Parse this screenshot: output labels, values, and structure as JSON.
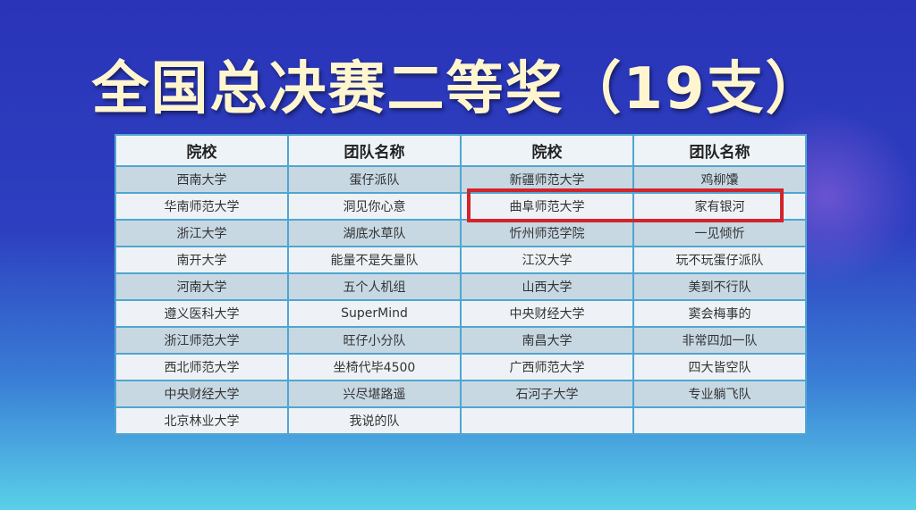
{
  "title": "全国总决赛二等奖（19支）",
  "headers": [
    "院校",
    "团队名称",
    "院校",
    "团队名称"
  ],
  "rows": [
    [
      "西南大学",
      "蛋仔派队",
      "新疆师范大学",
      "鸡柳馕"
    ],
    [
      "华南师范大学",
      "洞见你心意",
      "曲阜师范大学",
      "家有银河"
    ],
    [
      "浙江大学",
      "湖底水草队",
      "忻州师范学院",
      "一见倾忻"
    ],
    [
      "南开大学",
      "能量不是矢量队",
      "江汉大学",
      "玩不玩蛋仔派队"
    ],
    [
      "河南大学",
      "五个人机组",
      "山西大学",
      "美到不行队"
    ],
    [
      "遵义医科大学",
      "SuperMind",
      "中央财经大学",
      "窦会梅事的"
    ],
    [
      "浙江师范大学",
      "旺仔小分队",
      "南昌大学",
      "非常四加一队"
    ],
    [
      "西北师范大学",
      "坐椅代毕4500",
      "广西师范大学",
      "四大皆空队"
    ],
    [
      "中央财经大学",
      "兴尽堪路遥",
      "石河子大学",
      "专业躺飞队"
    ],
    [
      "北京林业大学",
      "我说的队",
      "",
      ""
    ]
  ],
  "highlight_color": "#d3242c"
}
